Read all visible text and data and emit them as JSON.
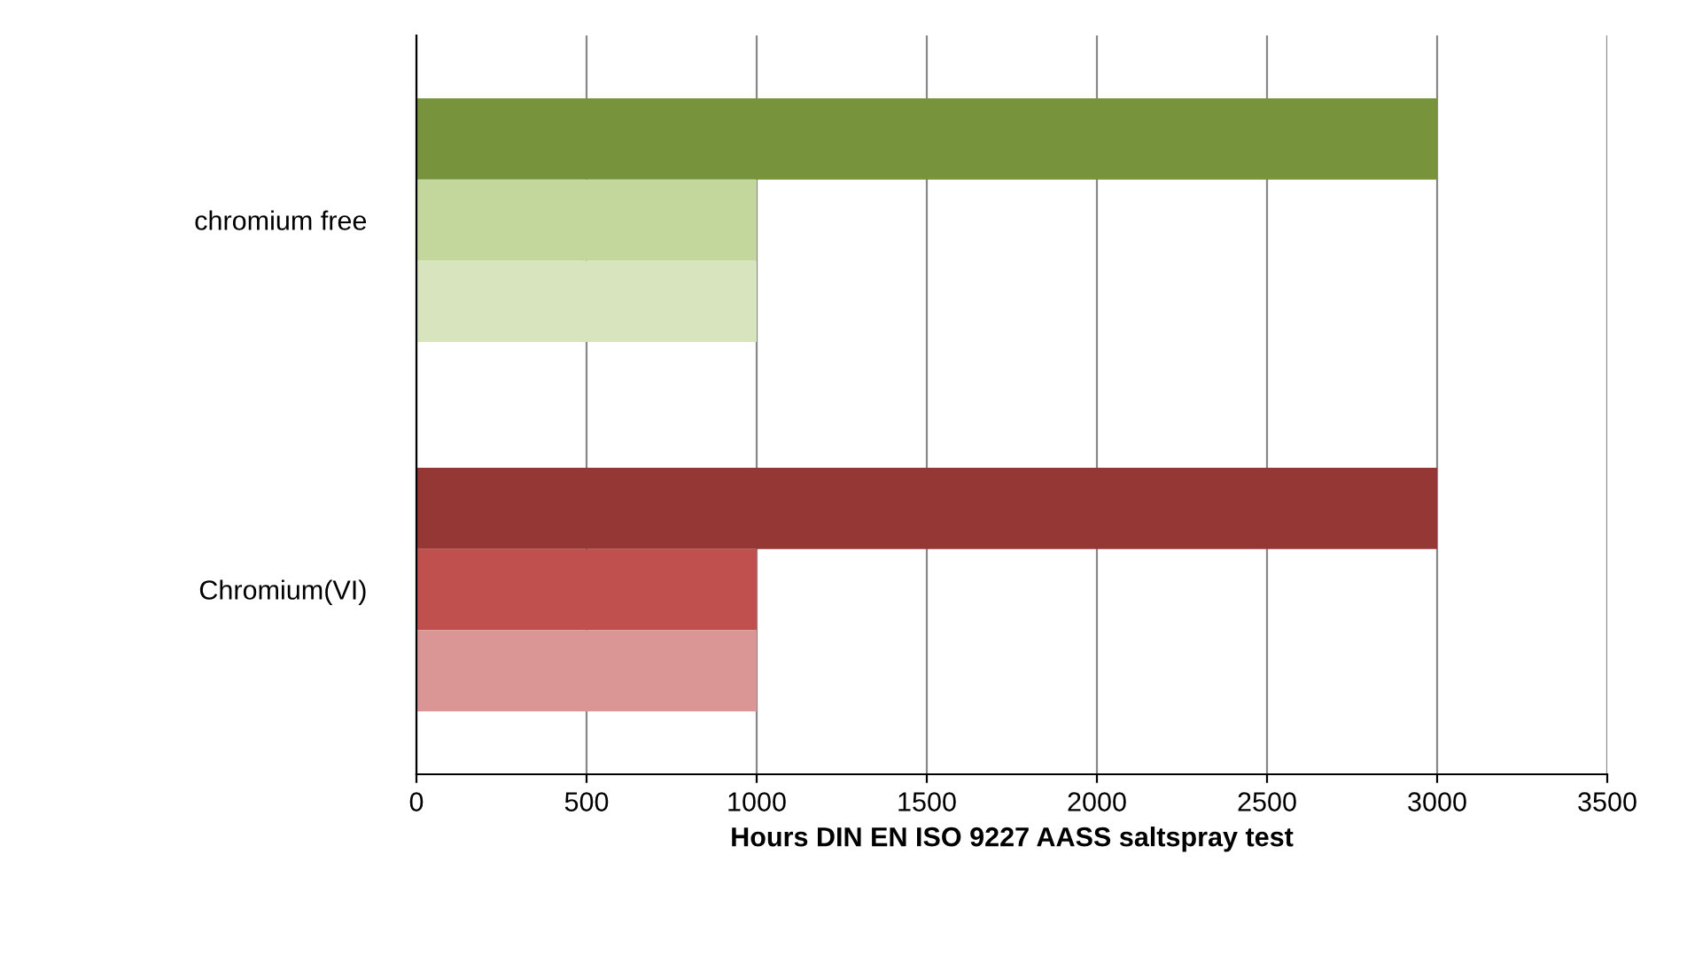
{
  "chart_data": {
    "type": "bar",
    "orientation": "horizontal",
    "categories": [
      "chromium free",
      "Chromium(VI)"
    ],
    "series": [
      {
        "colors": [
          "#77933c",
          "#953735"
        ],
        "values": [
          3000,
          3000
        ]
      },
      {
        "colors": [
          "#c3d69b",
          "#c0504d"
        ],
        "values": [
          1000,
          1000
        ]
      },
      {
        "colors": [
          "#d7e4bd",
          "#d99694"
        ],
        "values": [
          1000,
          1000
        ]
      }
    ],
    "xlabel": "Hours DIN EN ISO 9227 AASS saltspray test",
    "xlim": [
      0,
      3500
    ],
    "xticks": [
      0,
      500,
      1000,
      1500,
      2000,
      2500,
      3000,
      3500
    ],
    "grid": "x"
  }
}
